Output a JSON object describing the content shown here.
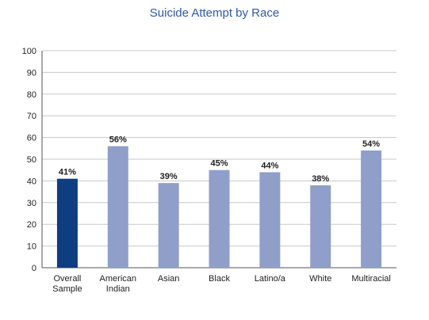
{
  "chart_data": {
    "type": "bar",
    "title": "Suicide Attempt by Race",
    "xlabel": "",
    "ylabel": "",
    "categories": [
      [
        "Overall",
        "Sample"
      ],
      [
        "American",
        "Indian"
      ],
      [
        "Asian"
      ],
      [
        "Black"
      ],
      [
        "Latino/a"
      ],
      [
        "White"
      ],
      [
        "Multiracial"
      ]
    ],
    "values": [
      41,
      56,
      39,
      45,
      44,
      38,
      54
    ],
    "data_labels": [
      "41%",
      "56%",
      "39%",
      "45%",
      "44%",
      "38%",
      "54%"
    ],
    "ylim": [
      0,
      100
    ],
    "yticks": [
      0,
      10,
      20,
      30,
      40,
      50,
      60,
      70,
      80,
      90,
      100
    ],
    "grid": true,
    "legend": "none",
    "colors": {
      "highlight": "#0e3d80",
      "bars": "#8f9fc9",
      "title": "#2e5aa8",
      "grid": "#c8c8c8",
      "axis": "#555555"
    }
  }
}
